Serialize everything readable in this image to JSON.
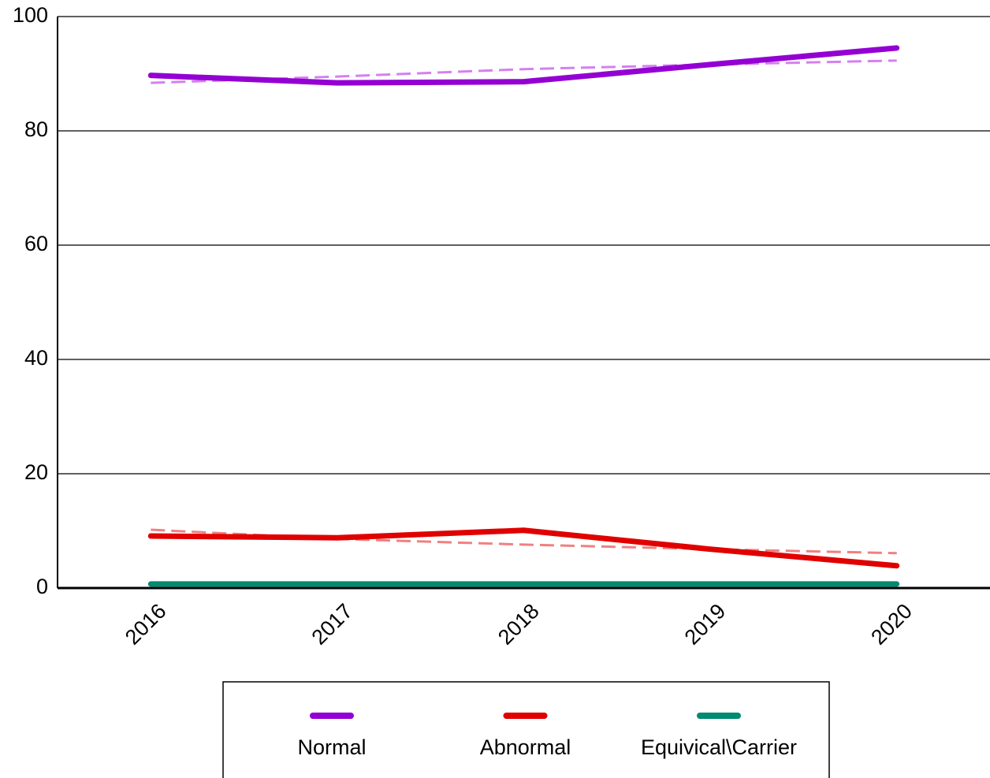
{
  "chart_data": {
    "type": "line",
    "categories": [
      "2016",
      "2017",
      "2018",
      "2019",
      "2020"
    ],
    "series": [
      {
        "name": "Normal",
        "color": "#9400d3",
        "values": [
          89.7,
          88.4,
          88.6,
          91.6,
          94.5
        ],
        "trend": [
          88.4,
          89.5,
          90.8,
          91.6,
          92.3
        ],
        "trend_color": "#d580f0"
      },
      {
        "name": "Abnormal",
        "color": "#e00000",
        "values": [
          9.1,
          8.8,
          10.1,
          6.8,
          3.9
        ],
        "trend": [
          10.2,
          8.6,
          7.6,
          6.8,
          6.1
        ],
        "trend_color": "#f08080"
      },
      {
        "name": "Equivical\\Carrier",
        "color": "#008b70",
        "values": [
          0.7,
          0.7,
          0.7,
          0.7,
          0.7
        ],
        "trend": [
          0.7,
          0.7,
          0.7,
          0.7,
          0.7
        ],
        "trend_color": "#a8e880"
      }
    ],
    "ylim": [
      0,
      100
    ],
    "yticks": [
      0,
      20,
      40,
      60,
      80,
      100
    ],
    "grid": true,
    "legend": "bottom"
  }
}
